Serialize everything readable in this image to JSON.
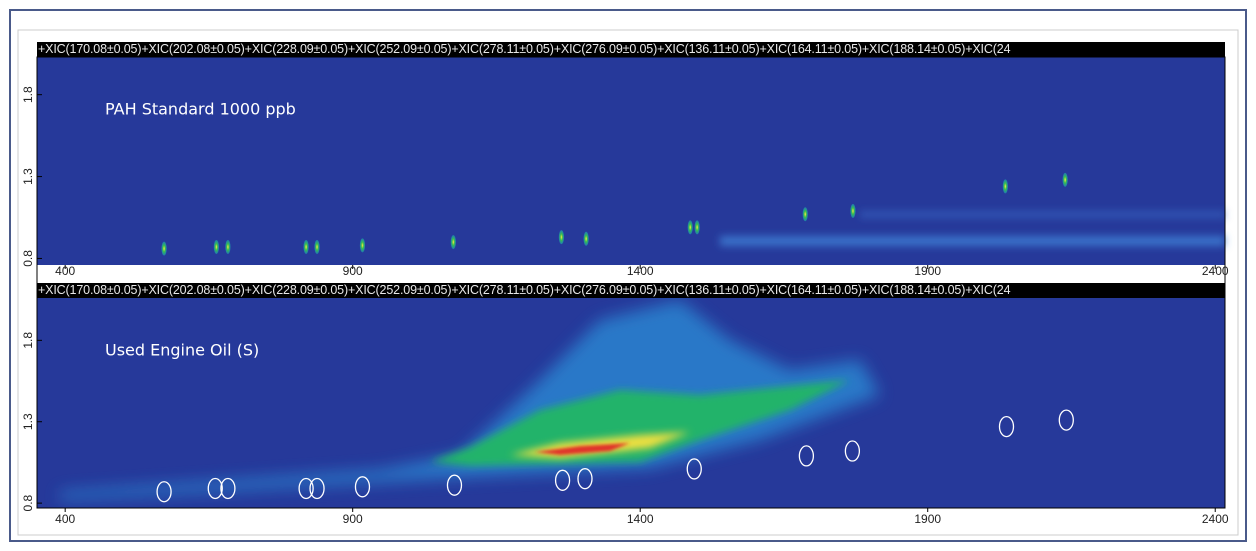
{
  "chart_data": [
    {
      "type": "contour",
      "header": "+XIC(170.08±0.05)+XIC(202.08±0.05)+XIC(228.09±0.05)+XIC(252.09±0.05)+XIC(278.11±0.05)+XIC(276.09±0.05)+XIC(136.11±0.05)+XIC(164.11±0.05)+XIC(188.14±0.05)+XIC(24",
      "title": "PAH Standard 1000 ppb",
      "marker": "spot",
      "x": [
        572,
        663,
        683,
        819,
        838,
        917,
        1075,
        1263,
        1306,
        1487,
        1499,
        1687,
        1770,
        2035,
        2139
      ],
      "y": [
        0.86,
        0.87,
        0.87,
        0.87,
        0.87,
        0.88,
        0.9,
        0.93,
        0.92,
        0.99,
        0.99,
        1.07,
        1.09,
        1.24,
        1.28
      ],
      "xlim": [
        351,
        2417
      ],
      "ylim": [
        0.76,
        2.03
      ],
      "xticks": [
        400,
        900,
        1400,
        1900,
        2400
      ],
      "yticks": [
        0.8,
        1.3,
        1.8
      ]
    },
    {
      "type": "contour",
      "header": "+XIC(170.08±0.05)+XIC(202.08±0.05)+XIC(228.09±0.05)+XIC(252.09±0.05)+XIC(278.11±0.05)+XIC(276.09±0.05)+XIC(136.11±0.05)+XIC(164.11±0.05)+XIC(188.14±0.05)+XIC(24",
      "title": "Used Engine Oil (S)",
      "marker": "circle",
      "x": [
        572,
        661,
        683,
        819,
        838,
        917,
        1077,
        1265,
        1304,
        1494,
        1689,
        1769,
        2037,
        2141
      ],
      "y": [
        0.87,
        0.89,
        0.89,
        0.89,
        0.89,
        0.9,
        0.91,
        0.94,
        0.95,
        1.01,
        1.09,
        1.12,
        1.27,
        1.31
      ],
      "xlim": [
        351,
        2417
      ],
      "ylim": [
        0.77,
        2.06
      ],
      "xticks": [
        400,
        900,
        1400,
        1900,
        2400
      ],
      "yticks": [
        0.8,
        1.3,
        1.8
      ]
    }
  ]
}
